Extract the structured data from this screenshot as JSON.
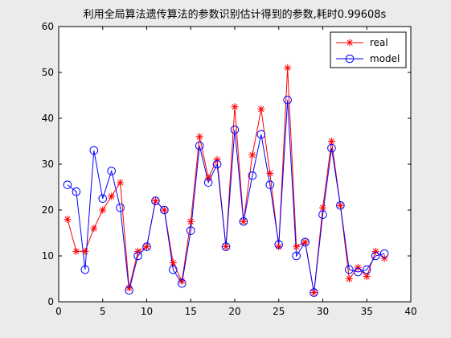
{
  "chart_data": {
    "type": "line",
    "title": "利用全局算法遗传算法的参数识别估计得到的参数,耗时0.99608s",
    "xlabel": "",
    "ylabel": "",
    "xlim": [
      0,
      40
    ],
    "ylim": [
      0,
      60
    ],
    "xticks": [
      0,
      5,
      10,
      15,
      20,
      25,
      30,
      35,
      40
    ],
    "yticks": [
      0,
      10,
      20,
      30,
      40,
      50,
      60
    ],
    "grid": false,
    "legend_position": "top-right",
    "x": [
      1,
      2,
      3,
      4,
      5,
      6,
      7,
      8,
      9,
      10,
      11,
      12,
      13,
      14,
      15,
      16,
      17,
      18,
      19,
      20,
      21,
      22,
      23,
      24,
      25,
      26,
      27,
      28,
      29,
      30,
      31,
      32,
      33,
      34,
      35,
      36,
      37
    ],
    "series": [
      {
        "name": "real",
        "color": "#ff0000",
        "marker": "asterisk",
        "values": [
          18,
          11,
          11,
          16,
          20,
          23,
          26,
          3,
          11,
          12,
          22,
          20,
          8.5,
          4.5,
          17.5,
          36,
          27,
          31,
          12,
          42.5,
          17.5,
          32,
          42,
          28,
          12,
          51,
          12,
          13,
          2,
          20.5,
          35,
          21,
          5,
          7.5,
          5.5,
          11,
          9.5
        ]
      },
      {
        "name": "model",
        "color": "#0000ff",
        "marker": "circle",
        "values": [
          25.5,
          24,
          7,
          33,
          22.5,
          28.5,
          20.5,
          2.5,
          10,
          12,
          22,
          20,
          7,
          4,
          15.5,
          34,
          26,
          30,
          12,
          37.5,
          17.5,
          27.5,
          36.5,
          25.5,
          12.5,
          44,
          10,
          13,
          2,
          19,
          33.5,
          21,
          7,
          6.5,
          7,
          10,
          10.5
        ]
      }
    ]
  }
}
